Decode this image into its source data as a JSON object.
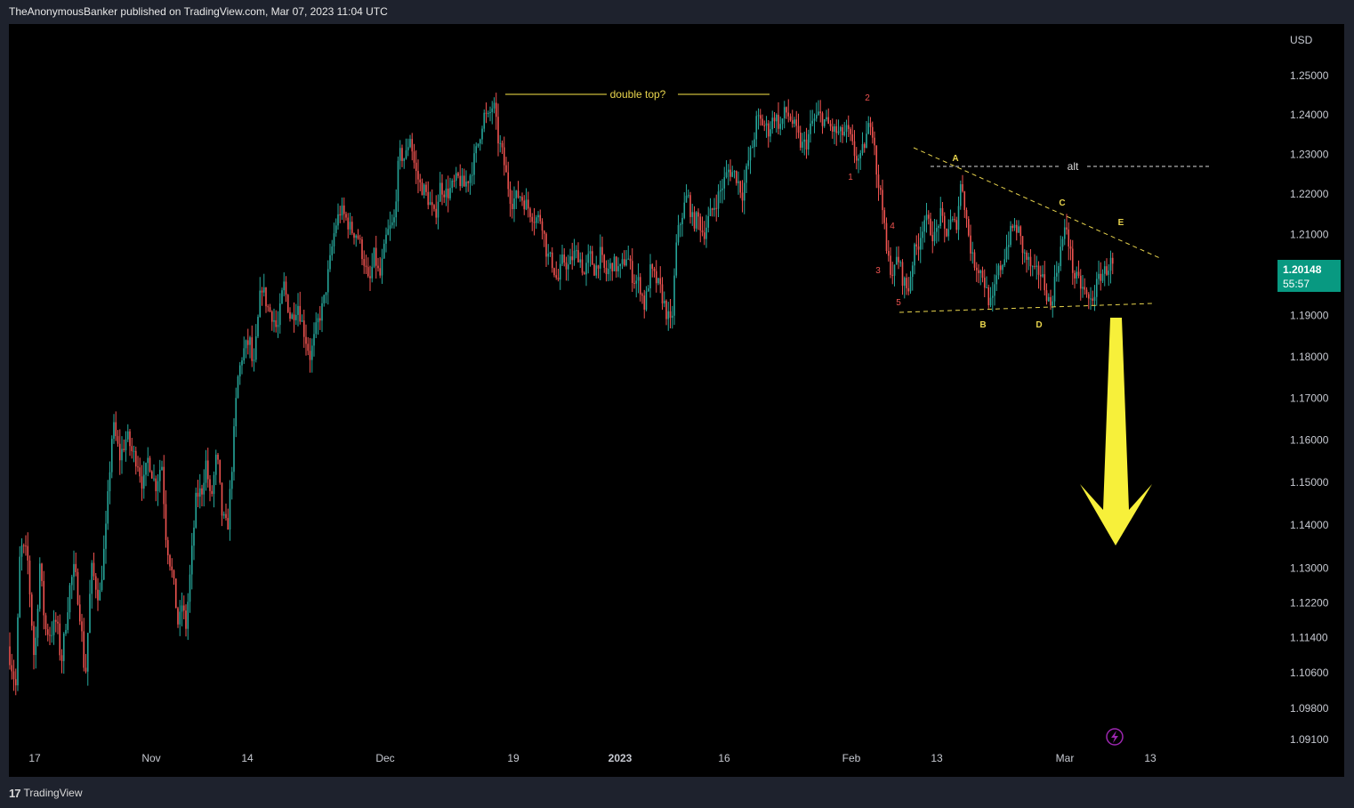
{
  "header": {
    "publisher": "TheAnonymousBanker published on TradingView.com, Mar 07, 2023 11:04 UTC"
  },
  "footer": {
    "brand": "TradingView",
    "logo_text": "17"
  },
  "colors": {
    "background": "#000000",
    "frame": "#1e222d",
    "up": "#26a69a",
    "down": "#ef5350",
    "annotation_yellow": "#e8d44d",
    "wave_red": "#ef5350",
    "price_badge": "#089981",
    "arrow": "#f7f03a",
    "alert_icon": "#9c27b0"
  },
  "icons": {
    "alert": "lightning-icon"
  },
  "chart_data": {
    "type": "candlestick",
    "symbol_currency": "USD",
    "y_axis": {
      "ticks": [
        "1.25000",
        "1.24000",
        "1.23000",
        "1.22000",
        "1.21000",
        "1.20000",
        "1.19000",
        "1.18000",
        "1.17000",
        "1.16000",
        "1.15000",
        "1.14000",
        "1.13000",
        "1.12200",
        "1.11400",
        "1.10600",
        "1.09800",
        "1.09100"
      ],
      "scale": "log"
    },
    "x_axis": {
      "ticks": [
        {
          "label": "17",
          "bold": false
        },
        {
          "label": "Nov",
          "bold": false
        },
        {
          "label": "14",
          "bold": false
        },
        {
          "label": "Dec",
          "bold": false
        },
        {
          "label": "19",
          "bold": false
        },
        {
          "label": "2023",
          "bold": true
        },
        {
          "label": "16",
          "bold": false
        },
        {
          "label": "Feb",
          "bold": false
        },
        {
          "label": "13",
          "bold": false
        },
        {
          "label": "Mar",
          "bold": false
        },
        {
          "label": "13",
          "bold": false
        }
      ]
    },
    "last_price": {
      "value": "1.20148",
      "countdown": "55:57"
    },
    "path_points": [
      [
        0,
        1.112
      ],
      [
        9,
        1.103
      ],
      [
        14,
        1.135
      ],
      [
        22,
        1.133
      ],
      [
        30,
        1.108
      ],
      [
        36,
        1.131
      ],
      [
        42,
        1.116
      ],
      [
        48,
        1.115
      ],
      [
        55,
        1.118
      ],
      [
        60,
        1.108
      ],
      [
        70,
        1.126
      ],
      [
        75,
        1.13
      ],
      [
        82,
        1.118
      ],
      [
        87,
        1.104
      ],
      [
        94,
        1.13
      ],
      [
        103,
        1.123
      ],
      [
        110,
        1.138
      ],
      [
        118,
        1.164
      ],
      [
        126,
        1.156
      ],
      [
        134,
        1.161
      ],
      [
        140,
        1.157
      ],
      [
        146,
        1.155
      ],
      [
        152,
        1.149
      ],
      [
        158,
        1.156
      ],
      [
        166,
        1.149
      ],
      [
        173,
        1.155
      ],
      [
        178,
        1.137
      ],
      [
        186,
        1.127
      ],
      [
        192,
        1.116
      ],
      [
        196,
        1.122
      ],
      [
        200,
        1.116
      ],
      [
        206,
        1.131
      ],
      [
        212,
        1.147
      ],
      [
        218,
        1.148
      ],
      [
        223,
        1.155
      ],
      [
        228,
        1.145
      ],
      [
        235,
        1.157
      ],
      [
        241,
        1.142
      ],
      [
        247,
        1.139
      ],
      [
        252,
        1.154
      ],
      [
        258,
        1.174
      ],
      [
        264,
        1.181
      ],
      [
        272,
        1.184
      ],
      [
        276,
        1.176
      ],
      [
        285,
        1.198
      ],
      [
        292,
        1.192
      ],
      [
        298,
        1.19
      ],
      [
        303,
        1.186
      ],
      [
        310,
        1.198
      ],
      [
        318,
        1.189
      ],
      [
        326,
        1.193
      ],
      [
        332,
        1.187
      ],
      [
        340,
        1.18
      ],
      [
        348,
        1.188
      ],
      [
        355,
        1.193
      ],
      [
        362,
        1.203
      ],
      [
        368,
        1.212
      ],
      [
        374,
        1.216
      ],
      [
        380,
        1.214
      ],
      [
        386,
        1.211
      ],
      [
        393,
        1.21
      ],
      [
        401,
        1.203
      ],
      [
        406,
        1.197
      ],
      [
        412,
        1.205
      ],
      [
        418,
        1.199
      ],
      [
        426,
        1.21
      ],
      [
        434,
        1.213
      ],
      [
        440,
        1.23
      ],
      [
        447,
        1.229
      ],
      [
        452,
        1.235
      ],
      [
        458,
        1.226
      ],
      [
        464,
        1.222
      ],
      [
        468,
        1.221
      ],
      [
        474,
        1.218
      ],
      [
        480,
        1.214
      ],
      [
        486,
        1.222
      ],
      [
        494,
        1.22
      ],
      [
        500,
        1.222
      ],
      [
        506,
        1.224
      ],
      [
        513,
        1.222
      ],
      [
        520,
        1.225
      ],
      [
        528,
        1.232
      ],
      [
        535,
        1.24
      ],
      [
        540,
        1.239
      ],
      [
        546,
        1.243
      ],
      [
        551,
        1.234
      ],
      [
        556,
        1.23
      ],
      [
        560,
        1.225
      ],
      [
        566,
        1.218
      ],
      [
        575,
        1.22
      ],
      [
        584,
        1.217
      ],
      [
        592,
        1.214
      ],
      [
        600,
        1.214
      ],
      [
        606,
        1.205
      ],
      [
        612,
        1.203
      ],
      [
        618,
        1.198
      ],
      [
        624,
        1.204
      ],
      [
        630,
        1.202
      ],
      [
        636,
        1.205
      ],
      [
        642,
        1.205
      ],
      [
        648,
        1.2
      ],
      [
        654,
        1.205
      ],
      [
        660,
        1.201
      ],
      [
        666,
        1.205
      ],
      [
        672,
        1.2
      ],
      [
        680,
        1.203
      ],
      [
        688,
        1.201
      ],
      [
        696,
        1.205
      ],
      [
        703,
        1.199
      ],
      [
        710,
        1.198
      ],
      [
        716,
        1.192
      ],
      [
        722,
        1.201
      ],
      [
        728,
        1.199
      ],
      [
        734,
        1.196
      ],
      [
        740,
        1.191
      ],
      [
        746,
        1.187
      ],
      [
        752,
        1.209
      ],
      [
        758,
        1.215
      ],
      [
        764,
        1.22
      ],
      [
        770,
        1.213
      ],
      [
        776,
        1.214
      ],
      [
        782,
        1.21
      ],
      [
        788,
        1.214
      ],
      [
        796,
        1.218
      ],
      [
        803,
        1.222
      ],
      [
        810,
        1.226
      ],
      [
        818,
        1.225
      ],
      [
        826,
        1.22
      ],
      [
        832,
        1.228
      ],
      [
        838,
        1.233
      ],
      [
        842,
        1.239
      ],
      [
        848,
        1.238
      ],
      [
        855,
        1.236
      ],
      [
        862,
        1.24
      ],
      [
        868,
        1.237
      ],
      [
        874,
        1.241
      ],
      [
        880,
        1.239
      ],
      [
        886,
        1.236
      ],
      [
        892,
        1.232
      ],
      [
        898,
        1.233
      ],
      [
        904,
        1.238
      ],
      [
        912,
        1.24
      ],
      [
        920,
        1.238
      ],
      [
        928,
        1.236
      ],
      [
        936,
        1.235
      ],
      [
        944,
        1.236
      ],
      [
        952,
        1.23
      ],
      [
        958,
        1.228
      ],
      [
        962,
        1.232
      ],
      [
        966,
        1.235
      ],
      [
        970,
        1.239
      ],
      [
        975,
        1.232
      ],
      [
        978,
        1.22
      ],
      [
        982,
        1.222
      ],
      [
        985,
        1.212
      ],
      [
        988,
        1.205
      ],
      [
        992,
        1.202
      ],
      [
        996,
        1.2
      ],
      [
        1000,
        1.205
      ],
      [
        1006,
        1.199
      ],
      [
        1012,
        1.196
      ],
      [
        1018,
        1.205
      ],
      [
        1024,
        1.208
      ],
      [
        1030,
        1.214
      ],
      [
        1036,
        1.212
      ],
      [
        1042,
        1.209
      ],
      [
        1048,
        1.215
      ],
      [
        1054,
        1.21
      ],
      [
        1060,
        1.213
      ],
      [
        1066,
        1.212
      ],
      [
        1072,
        1.224
      ],
      [
        1078,
        1.213
      ],
      [
        1084,
        1.204
      ],
      [
        1090,
        1.202
      ],
      [
        1096,
        1.2
      ],
      [
        1101,
        1.195
      ],
      [
        1106,
        1.192
      ],
      [
        1112,
        1.2
      ],
      [
        1118,
        1.203
      ],
      [
        1124,
        1.208
      ],
      [
        1130,
        1.212
      ],
      [
        1136,
        1.211
      ],
      [
        1142,
        1.205
      ],
      [
        1148,
        1.203
      ],
      [
        1154,
        1.2
      ],
      [
        1160,
        1.201
      ],
      [
        1166,
        1.197
      ],
      [
        1172,
        1.192
      ],
      [
        1178,
        1.2
      ],
      [
        1184,
        1.207
      ],
      [
        1190,
        1.212
      ],
      [
        1194,
        1.206
      ],
      [
        1198,
        1.2
      ],
      [
        1204,
        1.198
      ],
      [
        1210,
        1.196
      ],
      [
        1216,
        1.193
      ],
      [
        1222,
        1.196
      ],
      [
        1228,
        1.2
      ],
      [
        1234,
        1.201
      ],
      [
        1240,
        1.203
      ],
      [
        1244,
        1.201
      ],
      [
        1248,
        1.2015
      ]
    ],
    "annotations": {
      "double_top_label": "double top?",
      "alt_label": "alt",
      "triangle_labels": [
        "A",
        "B",
        "C",
        "D",
        "E"
      ],
      "wave_labels": [
        "1",
        "2",
        "3",
        "4",
        "5"
      ]
    }
  }
}
